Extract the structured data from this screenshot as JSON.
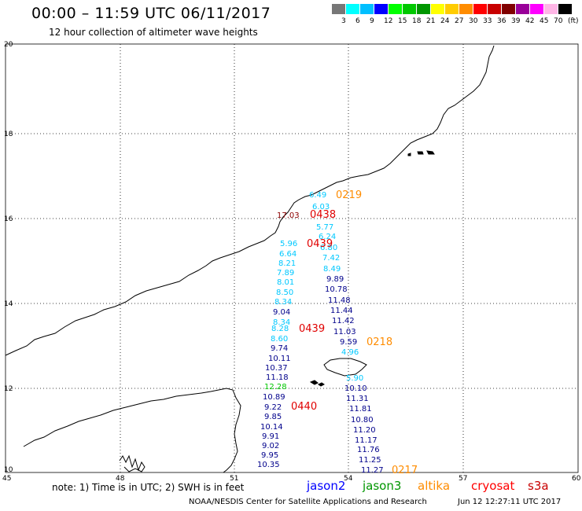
{
  "header": {
    "title": "00:00 – 11:59 UTC 06/11/2017",
    "subtitle": "12 hour collection of altimeter wave heights"
  },
  "colorbar": {
    "swatches": [
      "#777777",
      "#00ffff",
      "#00bfff",
      "#0000ff",
      "#00ff00",
      "#00c800",
      "#009600",
      "#ffff00",
      "#ffcc00",
      "#ff8c00",
      "#ff0000",
      "#c80000",
      "#800000",
      "#990099",
      "#ff00ff",
      "#ffb6e6",
      "#000000"
    ],
    "labels": [
      "3",
      "6",
      "9",
      "12",
      "15",
      "18",
      "21",
      "24",
      "27",
      "30",
      "33",
      "36",
      "39",
      "42",
      "45",
      "70",
      "(ft)"
    ]
  },
  "axes": {
    "y_ticks": [
      "20",
      "18",
      "16",
      "14",
      "12",
      "10"
    ],
    "x_ticks": [
      "45",
      "48",
      "51",
      "54",
      "57",
      "60"
    ]
  },
  "passes": [
    {
      "satellite": "jason2",
      "color": "#00008b",
      "values": [
        "10.89",
        "9.22",
        "9.85",
        "10.14",
        "9.91",
        "9.02",
        "9.95",
        "10.35"
      ]
    },
    {
      "satellite": "jason2",
      "color": "#00008b",
      "values": [
        "9.04",
        "8.34",
        "8.28",
        "8.60",
        "9.74",
        "10.11",
        "10.37",
        "11.18"
      ]
    },
    {
      "satellite": "cryosat",
      "color": "#00c8ff",
      "values": [
        "5.96",
        "6.64",
        "8.21",
        "7.89",
        "8.01",
        "8.50",
        "8.34"
      ]
    },
    {
      "satellite": "jason2",
      "color": "#00c8ff",
      "values": [
        "6.49",
        "6.03",
        "5.77",
        "6.24",
        "6.80",
        "7.42",
        "8.49"
      ]
    },
    {
      "satellite": "jason2",
      "color": "#00008b",
      "values": [
        "9.89",
        "10.78",
        "11.48",
        "11.44",
        "11.42",
        "11.03",
        "9.59"
      ]
    },
    {
      "satellite": "jason2",
      "color": "#00008b",
      "values": [
        "10.10",
        "11.31",
        "11.81",
        "10.80",
        "11.20",
        "11.17",
        "11.76",
        "11.25",
        "11.27"
      ]
    },
    {
      "satellite": "misc",
      "color": "#00c8ff",
      "values": [
        "4.96",
        "5.90"
      ]
    },
    {
      "satellite": "misc",
      "color": "#00c800",
      "values": [
        "12.28"
      ]
    },
    {
      "satellite": "misc",
      "color": "#8b0000",
      "values": [
        "17.03"
      ]
    }
  ],
  "time_tags": [
    {
      "label": "0219",
      "color": "#ff8c00"
    },
    {
      "label": "0438",
      "color": "#e00000"
    },
    {
      "label": "0439",
      "color": "#e00000"
    },
    {
      "label": "0439",
      "color": "#e00000"
    },
    {
      "label": "0218",
      "color": "#ff8c00"
    },
    {
      "label": "0440",
      "color": "#e00000"
    },
    {
      "label": "0217",
      "color": "#ff8c00"
    }
  ],
  "footer": {
    "note": "note: 1) Time is in UTC; 2) SWH is in feet",
    "legend": [
      {
        "label": "jason2",
        "color": "#0000ff"
      },
      {
        "label": "jason3",
        "color": "#009600"
      },
      {
        "label": "altika",
        "color": "#ff8c00"
      },
      {
        "label": "cryosat",
        "color": "#ff0000"
      },
      {
        "label": "s3a",
        "color": "#c80000"
      }
    ],
    "credit": "NOAA/NESDIS Center for Satellite Applications and Research",
    "timestamp": "Jun 12 12:27:11 UTC 2017"
  }
}
